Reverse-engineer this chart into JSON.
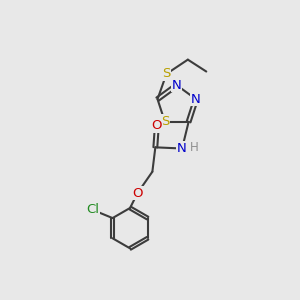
{
  "background_color": "#e8e8e8",
  "bond_color": "#3c3c3c",
  "figsize": [
    3.0,
    3.0
  ],
  "dpi": 100,
  "colors": {
    "S": "#b8a000",
    "N": "#0000cc",
    "O": "#cc0000",
    "Cl": "#228B22",
    "C": "#3c3c3c",
    "H": "#909090"
  }
}
